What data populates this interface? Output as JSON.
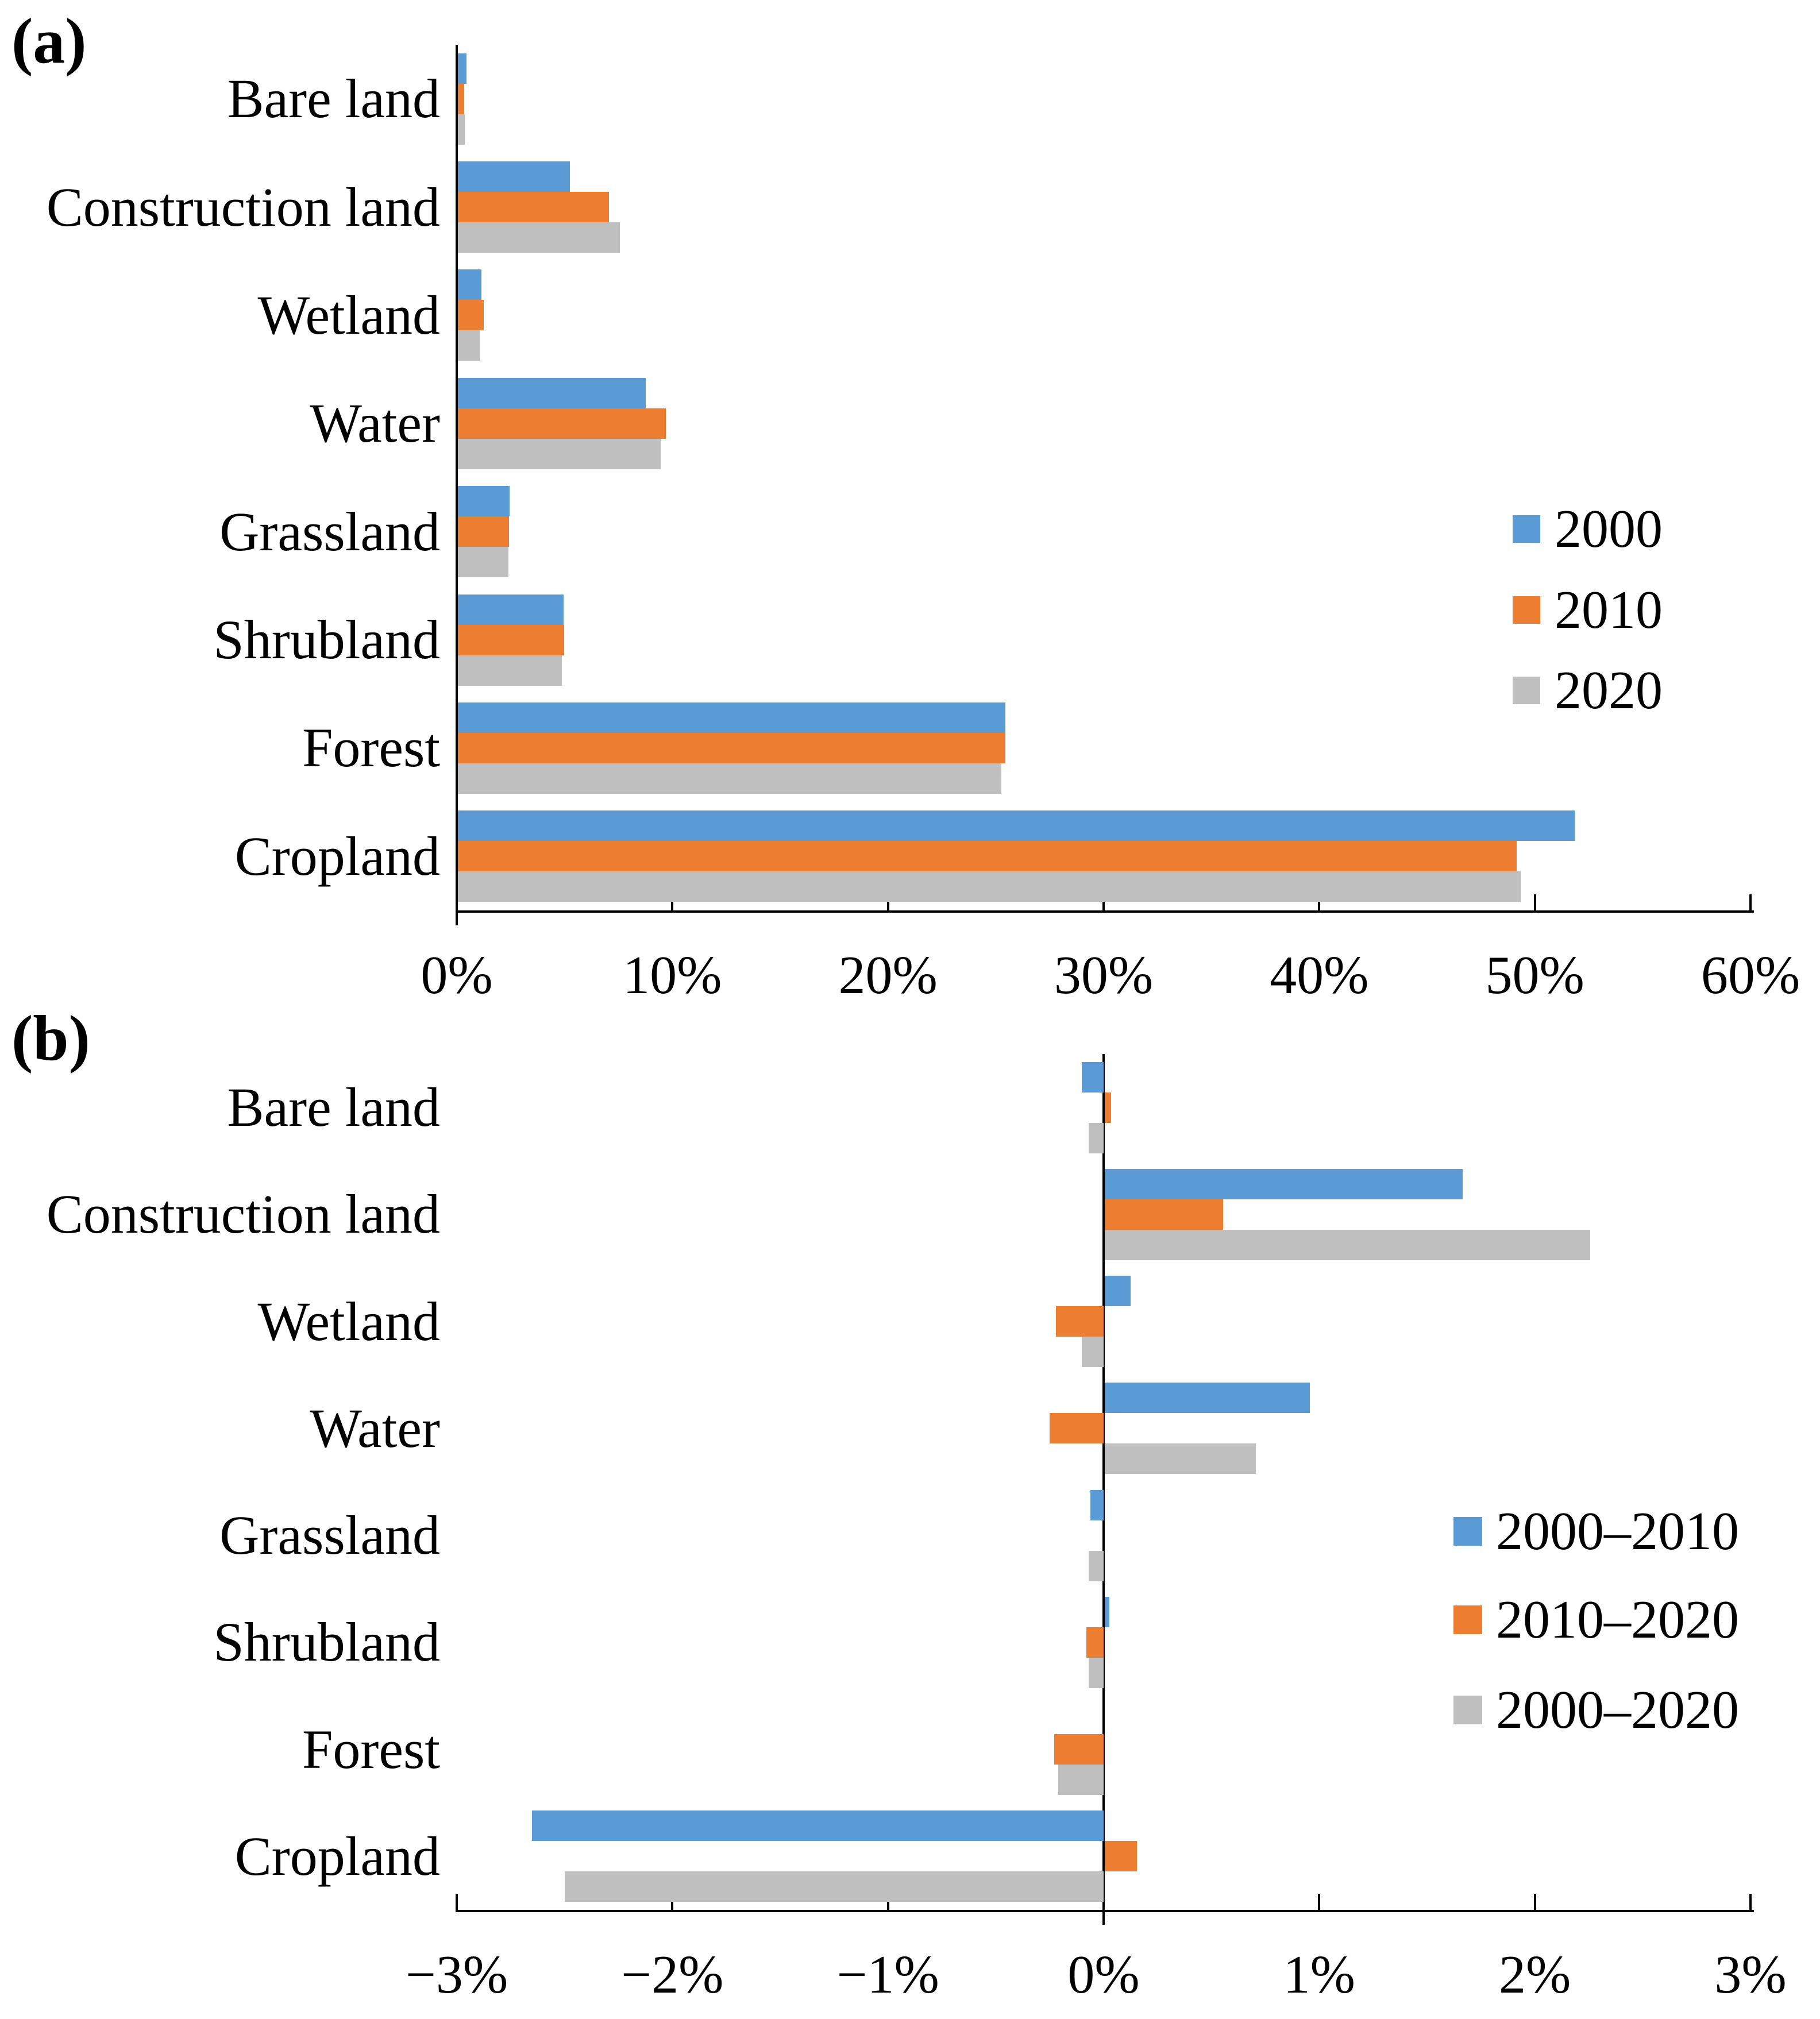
{
  "figure": {
    "panel_a_label": "(a)",
    "panel_b_label": "(b)"
  },
  "colors": {
    "series_blue": "#5B9BD5",
    "series_orange": "#ED7D31",
    "series_gray": "#BFBFBF",
    "axis": "#000000"
  },
  "chart_data": [
    {
      "id": "a",
      "type": "bar",
      "orientation": "horizontal",
      "title": "",
      "categories": [
        "Bare land",
        "Construction land",
        "Wetland",
        "Water",
        "Grassland",
        "Shrubland",
        "Forest",
        "Cropland"
      ],
      "series": [
        {
          "name": "2000",
          "color": "#5B9BD5",
          "values": [
            0.4,
            5.2,
            1.1,
            8.7,
            2.4,
            4.9,
            25.4,
            51.8
          ]
        },
        {
          "name": "2010",
          "color": "#ED7D31",
          "values": [
            0.3,
            7.0,
            1.2,
            9.65,
            2.37,
            4.92,
            25.4,
            49.1
          ]
        },
        {
          "name": "2020",
          "color": "#BFBFBF",
          "values": [
            0.33,
            7.5,
            1.0,
            9.4,
            2.34,
            4.82,
            25.2,
            49.3
          ]
        }
      ],
      "xlim": [
        0,
        60
      ],
      "xtick_values": [
        0,
        10,
        20,
        30,
        40,
        50,
        60
      ],
      "xticks": [
        "0%",
        "10%",
        "20%",
        "30%",
        "40%",
        "50%",
        "60%"
      ],
      "grid": false,
      "legend": {
        "position": "right",
        "labels": [
          "2000",
          "2010",
          "2020"
        ]
      }
    },
    {
      "id": "b",
      "type": "bar",
      "orientation": "horizontal",
      "title": "",
      "categories": [
        "Bare land",
        "Construction land",
        "Wetland",
        "Water",
        "Grassland",
        "Shrubland",
        "Forest",
        "Cropland"
      ],
      "series": [
        {
          "name": "2000–2010",
          "color": "#5B9BD5",
          "values": [
            -0.1,
            1.66,
            0.12,
            0.95,
            -0.06,
            0.02,
            0.0,
            -2.65
          ]
        },
        {
          "name": "2010–2020",
          "color": "#ED7D31",
          "values": [
            0.03,
            0.55,
            -0.22,
            -0.25,
            0.0,
            -0.08,
            -0.23,
            0.15
          ]
        },
        {
          "name": "2000–2020",
          "color": "#BFBFBF",
          "values": [
            -0.07,
            2.25,
            -0.1,
            0.7,
            -0.07,
            -0.07,
            -0.21,
            -2.5
          ]
        }
      ],
      "xlim": [
        -3,
        3
      ],
      "xtick_values": [
        -3,
        -2,
        -1,
        0,
        1,
        2,
        3
      ],
      "xticks": [
        "−3%",
        "−2%",
        "−1%",
        "0%",
        "1%",
        "2%",
        "3%"
      ],
      "grid": false,
      "legend": {
        "position": "right",
        "labels": [
          "2000–2010",
          "2010–2020",
          "2000–2020"
        ]
      }
    }
  ]
}
